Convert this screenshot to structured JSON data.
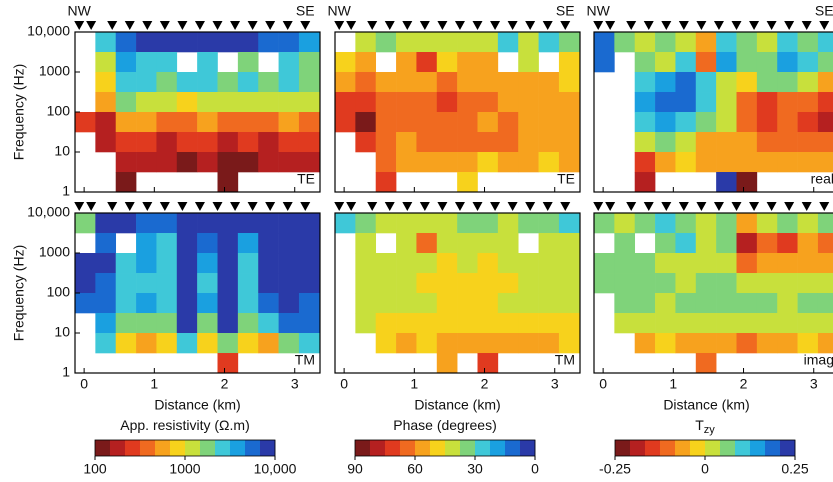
{
  "chart_data": [
    {
      "type": "heatmap",
      "colorbar_title": "App. resistivity (Ω.m)",
      "log_color": true,
      "clim": [
        100,
        10000
      ],
      "colorbar_ticks": [
        100,
        1000,
        {
          "value": 10000,
          "label": "10,000"
        }
      ],
      "colors": [
        "#7a1a1a",
        "#b52020",
        "#e03a1f",
        "#f06a20",
        "#f7a21e",
        "#f7d21c",
        "#c8e03c",
        "#7fd37a",
        "#3fc8d8",
        "#1aa0e0",
        "#1a6ad0",
        "#2a3aa8"
      ],
      "ylabel": "Frequency (Hz)",
      "xlabel": "Distance (km)",
      "xlim": [
        -0.13,
        3.36
      ],
      "ylim": [
        1,
        10000
      ],
      "log_y": true,
      "xticks": [
        0,
        1,
        2,
        3
      ],
      "yticks": [
        1,
        10,
        100,
        1000,
        {
          "value": 10000,
          "label": "10,000"
        }
      ],
      "markers": [
        "NW",
        "SE"
      ],
      "stations": [
        -0.07,
        0.1,
        0.4,
        0.65,
        0.9,
        1.15,
        1.4,
        1.65,
        1.9,
        2.15,
        2.4,
        2.65,
        2.9,
        3.15
      ],
      "x_edges": [
        -0.13,
        0.16,
        0.45,
        0.74,
        1.03,
        1.32,
        1.61,
        1.9,
        2.19,
        2.48,
        2.77,
        3.06,
        3.36
      ],
      "y_edges": [
        10000,
        3162,
        1000,
        316,
        100,
        31.6,
        10,
        3.16,
        1
      ],
      "panels": [
        {
          "label": "TE",
          "values": [
            [
              null,
              3000,
              5000,
              7000,
              9000,
              8000,
              9000,
              9000,
              8000,
              5000,
              6000,
              4000
            ],
            [
              null,
              1000,
              4000,
              3000,
              2500,
              null,
              3000,
              null,
              2000,
              null,
              3000,
              2000
            ],
            [
              null,
              700,
              3000,
              2500,
              2000,
              2500,
              3000,
              2000,
              2500,
              2000,
              2500,
              2000
            ],
            [
              null,
              500,
              1500,
              1200,
              1000,
              800,
              1200,
              1000,
              1200,
              1000,
              1300,
              1000
            ],
            [
              300,
              150,
              600,
              500,
              400,
              400,
              500,
              350,
              400,
              350,
              500,
              400
            ],
            [
              null,
              200,
              300,
              250,
              200,
              250,
              300,
              200,
              250,
              200,
              250,
              250
            ],
            [
              null,
              null,
              200,
              180,
              150,
              130,
              150,
              140,
              130,
              150,
              160,
              200
            ],
            [
              null,
              null,
              100,
              null,
              null,
              null,
              null,
              130,
              null,
              null,
              null,
              null
            ]
          ]
        },
        {
          "label": "TM",
          "values": [
            [
              2000,
              9000,
              9000,
              5000,
              6000,
              8000,
              9000,
              9000,
              9000,
              9000,
              9000,
              9000
            ],
            [
              null,
              5000,
              null,
              4000,
              3000,
              9000,
              5000,
              9000,
              4000,
              9000,
              9000,
              7000
            ],
            [
              9000,
              7000,
              3000,
              4000,
              3000,
              10000,
              4000,
              9000,
              3000,
              8000,
              10000,
              8000
            ],
            [
              8000,
              6000,
              2500,
              3000,
              2500,
              10000,
              3000,
              9000,
              2500,
              7000,
              9000,
              7000
            ],
            [
              6000,
              5000,
              3000,
              4000,
              3000,
              10000,
              4000,
              9000,
              3000,
              6000,
              8000,
              6000
            ],
            [
              null,
              4000,
              1500,
              2000,
              2000,
              9000,
              2000,
              7000,
              2000,
              3000,
              6000,
              5000
            ],
            [
              null,
              2500,
              900,
              600,
              800,
              3000,
              700,
              1500,
              700,
              500,
              1500,
              3000
            ],
            [
              null,
              null,
              null,
              null,
              null,
              null,
              null,
              300,
              null,
              null,
              null,
              null
            ]
          ]
        }
      ]
    },
    {
      "type": "heatmap",
      "colorbar_title": "Phase (degrees)",
      "log_color": false,
      "clim": [
        90,
        0
      ],
      "colorbar_ticks": [
        90,
        60,
        30,
        0
      ],
      "colors": [
        "#7a1a1a",
        "#b52020",
        "#e03a1f",
        "#f06a20",
        "#f7a21e",
        "#f7d21c",
        "#c8e03c",
        "#7fd37a",
        "#3fc8d8",
        "#1aa0e0",
        "#1a6ad0",
        "#2a3aa8"
      ],
      "xlabel": "Distance (km)",
      "xlim": [
        -0.13,
        3.36
      ],
      "ylim": [
        1,
        10000
      ],
      "log_y": true,
      "xticks": [
        0,
        1,
        2,
        3
      ],
      "markers": [
        "NW",
        "SE"
      ],
      "stations": [
        -0.07,
        0.1,
        0.4,
        0.65,
        0.9,
        1.15,
        1.4,
        1.65,
        1.9,
        2.15,
        2.4,
        2.65,
        2.9,
        3.15
      ],
      "x_edges": [
        -0.13,
        0.16,
        0.45,
        0.74,
        1.03,
        1.32,
        1.61,
        1.9,
        2.19,
        2.48,
        2.77,
        3.06,
        3.36
      ],
      "y_edges": [
        10000,
        3162,
        1000,
        316,
        100,
        31.6,
        10,
        3.16,
        1
      ],
      "panels": [
        {
          "label": "TE",
          "values": [
            [
              null,
              40,
              35,
              40,
              38,
              42,
              40,
              38,
              30,
              42,
              30,
              35
            ],
            [
              50,
              60,
              null,
              55,
              75,
              50,
              60,
              55,
              null,
              45,
              null,
              50
            ],
            [
              60,
              62,
              55,
              58,
              60,
              62,
              58,
              60,
              55,
              58,
              55,
              52
            ],
            [
              70,
              72,
              62,
              65,
              65,
              68,
              62,
              62,
              60,
              60,
              60,
              58
            ],
            [
              75,
              85,
              65,
              62,
              65,
              65,
              62,
              60,
              62,
              60,
              60,
              58
            ],
            [
              null,
              72,
              65,
              60,
              62,
              65,
              62,
              65,
              62,
              60,
              60,
              60
            ],
            [
              null,
              null,
              62,
              58,
              55,
              58,
              60,
              50,
              55,
              55,
              52,
              55
            ],
            [
              null,
              null,
              70,
              null,
              null,
              null,
              50,
              null,
              null,
              null,
              null,
              null
            ]
          ]
        },
        {
          "label": "TM",
          "values": [
            [
              30,
              35,
              40,
              38,
              38,
              40,
              36,
              35,
              40,
              35,
              35,
              30
            ],
            [
              null,
              40,
              null,
              42,
              65,
              45,
              42,
              45,
              40,
              null,
              45,
              40
            ],
            [
              null,
              42,
              44,
              45,
              45,
              46,
              45,
              48,
              45,
              45,
              44,
              40
            ],
            [
              null,
              40,
              42,
              44,
              46,
              47,
              48,
              48,
              46,
              44,
              42,
              38
            ],
            [
              null,
              40,
              42,
              44,
              45,
              46,
              46,
              46,
              45,
              44,
              42,
              40
            ],
            [
              null,
              45,
              48,
              50,
              50,
              52,
              50,
              52,
              50,
              48,
              48,
              46
            ],
            [
              null,
              null,
              50,
              55,
              52,
              55,
              60,
              58,
              55,
              55,
              55,
              50
            ],
            [
              null,
              null,
              null,
              null,
              null,
              55,
              null,
              70,
              null,
              null,
              null,
              null
            ]
          ]
        }
      ]
    },
    {
      "type": "heatmap",
      "colorbar_title": "T",
      "colorbar_title_sub": "zy",
      "log_color": false,
      "clim": [
        -0.25,
        0.25
      ],
      "colorbar_ticks": [
        -0.25,
        0,
        0.25
      ],
      "colors": [
        "#7a1a1a",
        "#b52020",
        "#e03a1f",
        "#f06a20",
        "#f7a21e",
        "#f7d21c",
        "#c8e03c",
        "#7fd37a",
        "#3fc8d8",
        "#1aa0e0",
        "#1a6ad0",
        "#2a3aa8"
      ],
      "xlabel": "Distance (km)",
      "xlim": [
        -0.13,
        3.36
      ],
      "ylim": [
        1,
        10000
      ],
      "log_y": true,
      "xticks": [
        0,
        1,
        2,
        3
      ],
      "markers": [
        "NW",
        "SE"
      ],
      "stations": [
        -0.07,
        0.1,
        0.4,
        0.65,
        0.9,
        1.15,
        1.4,
        1.65,
        1.9,
        2.15,
        2.4,
        2.65,
        2.9,
        3.15
      ],
      "x_edges": [
        -0.13,
        0.16,
        0.45,
        0.74,
        1.03,
        1.32,
        1.61,
        1.9,
        2.19,
        2.48,
        2.77,
        3.06,
        3.36
      ],
      "y_edges": [
        10000,
        3162,
        1000,
        316,
        100,
        31.6,
        10,
        3.16,
        1
      ],
      "panels": [
        {
          "label": "real",
          "values": [
            [
              0.2,
              0.05,
              0.02,
              0.05,
              0,
              -0.05,
              0.1,
              0.05,
              0,
              0.1,
              0.05,
              0.1
            ],
            [
              0.2,
              null,
              0.05,
              0,
              0.1,
              -0.1,
              0.15,
              0.05,
              0.05,
              0.15,
              0.1,
              0.05
            ],
            [
              null,
              null,
              0.1,
              0.15,
              0.18,
              0.1,
              0.02,
              -0.02,
              0.05,
              0.05,
              0,
              -0.05
            ],
            [
              null,
              null,
              0.15,
              0.2,
              0.2,
              0.1,
              0,
              -0.1,
              -0.15,
              -0.1,
              -0.12,
              -0.15
            ],
            [
              null,
              null,
              0.1,
              0.15,
              0.12,
              0.05,
              0,
              -0.1,
              -0.15,
              -0.12,
              -0.15,
              -0.18
            ],
            [
              null,
              null,
              0.02,
              0.05,
              0,
              -0.05,
              -0.05,
              -0.08,
              -0.1,
              -0.1,
              -0.1,
              -0.12
            ],
            [
              null,
              null,
              -0.15,
              -0.05,
              -0.02,
              -0.05,
              -0.05,
              -0.08,
              -0.05,
              -0.08,
              -0.05,
              -0.05
            ],
            [
              null,
              null,
              -0.2,
              null,
              null,
              null,
              0.25,
              -0.22,
              null,
              null,
              null,
              null
            ]
          ]
        },
        {
          "label": "imag",
          "values": [
            [
              0.05,
              0,
              0.05,
              0.1,
              0.05,
              0,
              0.05,
              -0.05,
              0,
              0.05,
              0,
              0.05
            ],
            [
              null,
              0.05,
              null,
              0.05,
              0.1,
              0,
              0.05,
              -0.2,
              -0.1,
              -0.15,
              -0.05,
              -0.1
            ],
            [
              0.05,
              0.05,
              0.05,
              0.02,
              0,
              0,
              0,
              -0.1,
              -0.05,
              -0.08,
              -0.05,
              -0.05
            ],
            [
              0.05,
              0.05,
              0.05,
              0.05,
              0.02,
              0.05,
              0.05,
              0,
              0,
              0,
              0,
              0
            ],
            [
              null,
              0.05,
              0.05,
              0.02,
              0.05,
              0.05,
              0.05,
              0.05,
              0.05,
              0.02,
              0.05,
              0.05
            ],
            [
              null,
              0.02,
              0,
              0,
              0.02,
              0.02,
              0.02,
              0.02,
              0,
              0.02,
              0,
              0
            ],
            [
              null,
              null,
              -0.05,
              -0.02,
              -0.05,
              -0.08,
              -0.05,
              -0.1,
              -0.05,
              -0.05,
              -0.02,
              -0.05
            ],
            [
              null,
              null,
              null,
              null,
              null,
              -0.1,
              null,
              null,
              null,
              null,
              null,
              null
            ]
          ]
        }
      ]
    }
  ]
}
